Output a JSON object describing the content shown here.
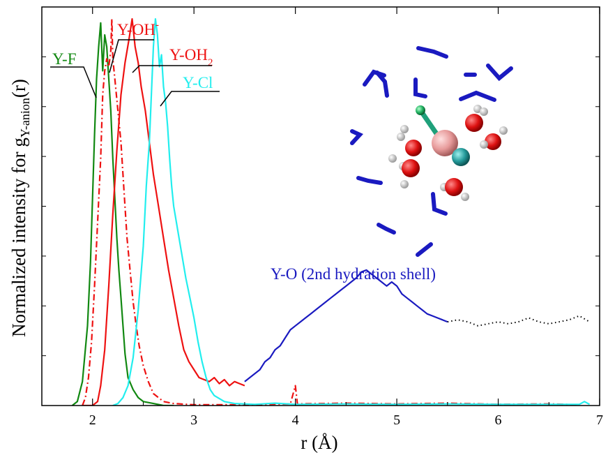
{
  "chart_data": {
    "type": "line",
    "xlabel": "r (Å)",
    "ylabel": {
      "prefix": "Normalized intensity for g",
      "subscript": "Y-anion",
      "suffix": "(r)"
    },
    "xlim": [
      1.5,
      7.0
    ],
    "ylim": [
      0,
      1
    ],
    "x_ticks": [
      2,
      3,
      4,
      5,
      6,
      7
    ],
    "x_tick_labels": [
      "2",
      "3",
      "4",
      "5",
      "6",
      "7"
    ],
    "y_tick_labels_shown": false,
    "series": [
      {
        "name": "Y-F",
        "color": "#118811",
        "style": "solid",
        "points": [
          [
            1.8,
            0
          ],
          [
            1.85,
            0.01
          ],
          [
            1.9,
            0.06
          ],
          [
            1.95,
            0.2
          ],
          [
            1.98,
            0.36
          ],
          [
            2.0,
            0.52
          ],
          [
            2.02,
            0.68
          ],
          [
            2.04,
            0.82
          ],
          [
            2.06,
            0.9
          ],
          [
            2.08,
            0.96
          ],
          [
            2.1,
            0.84
          ],
          [
            2.12,
            0.93
          ],
          [
            2.14,
            0.9
          ],
          [
            2.16,
            0.82
          ],
          [
            2.18,
            0.74
          ],
          [
            2.2,
            0.62
          ],
          [
            2.22,
            0.52
          ],
          [
            2.24,
            0.42
          ],
          [
            2.26,
            0.34
          ],
          [
            2.28,
            0.27
          ],
          [
            2.3,
            0.2
          ],
          [
            2.32,
            0.13
          ],
          [
            2.35,
            0.07
          ],
          [
            2.4,
            0.04
          ],
          [
            2.45,
            0.02
          ],
          [
            2.5,
            0.01
          ],
          [
            2.6,
            0.005
          ],
          [
            2.7,
            0
          ],
          [
            2.8,
            0
          ]
        ]
      },
      {
        "name": "Y-OH-",
        "color": "#ee1111",
        "style": "dash-dot",
        "points": [
          [
            1.9,
            0
          ],
          [
            1.93,
            0.02
          ],
          [
            1.96,
            0.07
          ],
          [
            1.99,
            0.16
          ],
          [
            2.02,
            0.3
          ],
          [
            2.05,
            0.46
          ],
          [
            2.08,
            0.62
          ],
          [
            2.1,
            0.78
          ],
          [
            2.12,
            0.84
          ],
          [
            2.14,
            0.87
          ],
          [
            2.16,
            0.85
          ],
          [
            2.18,
            0.89
          ],
          [
            2.19,
            0.97
          ],
          [
            2.2,
            0.87
          ],
          [
            2.22,
            0.82
          ],
          [
            2.25,
            0.74
          ],
          [
            2.28,
            0.66
          ],
          [
            2.31,
            0.54
          ],
          [
            2.34,
            0.42
          ],
          [
            2.37,
            0.34
          ],
          [
            2.4,
            0.26
          ],
          [
            2.43,
            0.2
          ],
          [
            2.46,
            0.15
          ],
          [
            2.5,
            0.1
          ],
          [
            2.55,
            0.06
          ],
          [
            2.6,
            0.03
          ],
          [
            2.7,
            0.01
          ],
          [
            2.8,
            0.005
          ],
          [
            3.0,
            0.002
          ],
          [
            3.5,
            0.002
          ],
          [
            3.95,
            0.004
          ],
          [
            4.0,
            0.05
          ],
          [
            4.02,
            0.004
          ],
          [
            4.5,
            0.006
          ],
          [
            5.0,
            0.004
          ],
          [
            5.5,
            0.006
          ],
          [
            6.0,
            0.003
          ],
          [
            6.5,
            0.004
          ],
          [
            6.8,
            0.002
          ]
        ]
      },
      {
        "name": "Y-OH2",
        "color": "#ee1111",
        "style": "solid",
        "points": [
          [
            1.9,
            0
          ],
          [
            2.0,
            0
          ],
          [
            2.05,
            0.01
          ],
          [
            2.08,
            0.05
          ],
          [
            2.12,
            0.14
          ],
          [
            2.16,
            0.3
          ],
          [
            2.2,
            0.48
          ],
          [
            2.24,
            0.64
          ],
          [
            2.28,
            0.78
          ],
          [
            2.32,
            0.86
          ],
          [
            2.36,
            0.92
          ],
          [
            2.39,
            0.97
          ],
          [
            2.42,
            0.9
          ],
          [
            2.45,
            0.86
          ],
          [
            2.48,
            0.8
          ],
          [
            2.52,
            0.74
          ],
          [
            2.56,
            0.66
          ],
          [
            2.6,
            0.58
          ],
          [
            2.65,
            0.5
          ],
          [
            2.7,
            0.42
          ],
          [
            2.75,
            0.34
          ],
          [
            2.8,
            0.27
          ],
          [
            2.85,
            0.2
          ],
          [
            2.9,
            0.14
          ],
          [
            2.95,
            0.11
          ],
          [
            3.0,
            0.09
          ],
          [
            3.05,
            0.07
          ],
          [
            3.1,
            0.065
          ],
          [
            3.15,
            0.06
          ],
          [
            3.2,
            0.07
          ],
          [
            3.25,
            0.055
          ],
          [
            3.3,
            0.065
          ],
          [
            3.35,
            0.05
          ],
          [
            3.4,
            0.06
          ],
          [
            3.45,
            0.055
          ],
          [
            3.5,
            0.05
          ]
        ]
      },
      {
        "name": "Y-Cl",
        "color": "#22eeee",
        "style": "solid",
        "points": [
          [
            2.2,
            0
          ],
          [
            2.25,
            0.005
          ],
          [
            2.3,
            0.02
          ],
          [
            2.35,
            0.05
          ],
          [
            2.4,
            0.12
          ],
          [
            2.45,
            0.24
          ],
          [
            2.5,
            0.4
          ],
          [
            2.53,
            0.55
          ],
          [
            2.56,
            0.66
          ],
          [
            2.58,
            0.78
          ],
          [
            2.6,
            0.9
          ],
          [
            2.62,
            0.97
          ],
          [
            2.64,
            0.93
          ],
          [
            2.66,
            0.85
          ],
          [
            2.68,
            0.88
          ],
          [
            2.7,
            0.8
          ],
          [
            2.72,
            0.76
          ],
          [
            2.74,
            0.7
          ],
          [
            2.76,
            0.62
          ],
          [
            2.78,
            0.55
          ],
          [
            2.8,
            0.5
          ],
          [
            2.84,
            0.44
          ],
          [
            2.88,
            0.38
          ],
          [
            2.92,
            0.32
          ],
          [
            2.96,
            0.27
          ],
          [
            3.0,
            0.22
          ],
          [
            3.04,
            0.16
          ],
          [
            3.08,
            0.11
          ],
          [
            3.12,
            0.07
          ],
          [
            3.16,
            0.04
          ],
          [
            3.2,
            0.025
          ],
          [
            3.3,
            0.01
          ],
          [
            3.4,
            0.005
          ],
          [
            3.6,
            0.003
          ],
          [
            3.8,
            0.006
          ],
          [
            4.0,
            0.003
          ],
          [
            4.5,
            0.004
          ],
          [
            5.0,
            0.003
          ],
          [
            5.5,
            0.004
          ],
          [
            6.0,
            0.003
          ],
          [
            6.5,
            0.003
          ],
          [
            6.8,
            0.003
          ],
          [
            6.85,
            0.01
          ],
          [
            6.9,
            0.003
          ]
        ]
      },
      {
        "name": "Y-O (2nd hydration shell)",
        "color": "#1a1ac0",
        "style": "solid",
        "points": [
          [
            3.5,
            0.06
          ],
          [
            3.55,
            0.07
          ],
          [
            3.6,
            0.08
          ],
          [
            3.65,
            0.09
          ],
          [
            3.7,
            0.11
          ],
          [
            3.75,
            0.12
          ],
          [
            3.8,
            0.14
          ],
          [
            3.85,
            0.15
          ],
          [
            3.9,
            0.17
          ],
          [
            3.95,
            0.19
          ],
          [
            4.0,
            0.2
          ],
          [
            4.05,
            0.21
          ],
          [
            4.1,
            0.22
          ],
          [
            4.15,
            0.23
          ],
          [
            4.2,
            0.24
          ],
          [
            4.25,
            0.25
          ],
          [
            4.3,
            0.26
          ],
          [
            4.35,
            0.27
          ],
          [
            4.4,
            0.28
          ],
          [
            4.45,
            0.29
          ],
          [
            4.5,
            0.3
          ],
          [
            4.55,
            0.31
          ],
          [
            4.6,
            0.32
          ],
          [
            4.65,
            0.335
          ],
          [
            4.7,
            0.34
          ],
          [
            4.75,
            0.33
          ],
          [
            4.8,
            0.32
          ],
          [
            4.85,
            0.31
          ],
          [
            4.9,
            0.3
          ],
          [
            4.95,
            0.31
          ],
          [
            5.0,
            0.3
          ],
          [
            5.05,
            0.28
          ],
          [
            5.1,
            0.27
          ],
          [
            5.15,
            0.26
          ],
          [
            5.2,
            0.25
          ],
          [
            5.25,
            0.24
          ],
          [
            5.3,
            0.23
          ],
          [
            5.35,
            0.225
          ],
          [
            5.4,
            0.22
          ],
          [
            5.45,
            0.215
          ],
          [
            5.5,
            0.21
          ]
        ]
      },
      {
        "name": "",
        "color": "#000000",
        "style": "dotted",
        "points": [
          [
            5.5,
            0.21
          ],
          [
            5.6,
            0.215
          ],
          [
            5.7,
            0.21
          ],
          [
            5.8,
            0.2
          ],
          [
            5.9,
            0.205
          ],
          [
            6.0,
            0.21
          ],
          [
            6.1,
            0.205
          ],
          [
            6.2,
            0.21
          ],
          [
            6.3,
            0.22
          ],
          [
            6.4,
            0.21
          ],
          [
            6.5,
            0.205
          ],
          [
            6.6,
            0.21
          ],
          [
            6.7,
            0.215
          ],
          [
            6.8,
            0.225
          ],
          [
            6.9,
            0.21
          ]
        ]
      }
    ],
    "annotations": {
      "y_f": "Y-F",
      "y_oh": {
        "base": "Y-OH",
        "sup": "-"
      },
      "y_oh2": {
        "base": "Y-OH",
        "sub": "2"
      },
      "y_cl": "Y-Cl",
      "y_o": "Y-O (2nd hydration shell)"
    }
  },
  "colors": {
    "green": "#118811",
    "red": "#ee1111",
    "cyan": "#22eeee",
    "blue": "#1a1ac0",
    "black": "#000000"
  },
  "inset": {
    "description_icon": "molecular-structure-icon"
  }
}
